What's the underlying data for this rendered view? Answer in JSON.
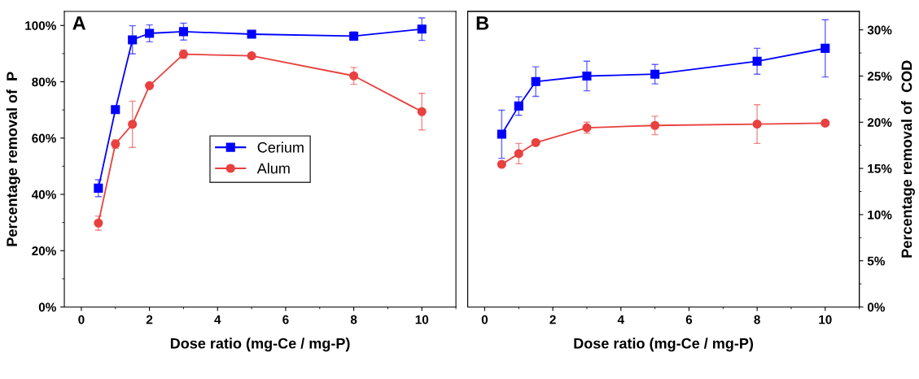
{
  "chart_data": [
    {
      "type": "line",
      "title": "A",
      "xlabel": "Dose ratio (mg-Ce / mg-P)",
      "ylabel": "Percentage removal of  P",
      "x": [
        0.5,
        1,
        1.5,
        2,
        3,
        5,
        8,
        10
      ],
      "xlim": [
        -0.5,
        11
      ],
      "xticks": [
        0,
        2,
        4,
        6,
        8,
        10
      ],
      "ylim": [
        0,
        105
      ],
      "yticks": [
        {
          "value": 0,
          "label": "0%"
        },
        {
          "value": 20,
          "label": "20%"
        },
        {
          "value": 40,
          "label": "40%"
        },
        {
          "value": 60,
          "label": "60%"
        },
        {
          "value": 80,
          "label": "80%"
        },
        {
          "value": 100,
          "label": "100%"
        }
      ],
      "series": [
        {
          "name": "Cerium",
          "color": "#0000ff",
          "marker": "square",
          "values": [
            42.2,
            70.1,
            94.9,
            97.2,
            97.8,
            96.9,
            96.2,
            98.7
          ],
          "errors": [
            3,
            0.5,
            5,
            3,
            3,
            1,
            1.5,
            4
          ]
        },
        {
          "name": "Alum",
          "color": "#e8413f",
          "marker": "circle",
          "values": [
            29.8,
            57.9,
            64.9,
            78.6,
            89.8,
            89.2,
            82.1,
            69.4
          ],
          "errors": [
            2.5,
            1.5,
            8.2,
            0.5,
            1.5,
            0.5,
            3,
            6.5
          ]
        }
      ],
      "legend": "center",
      "grid": false
    },
    {
      "type": "line",
      "title": "B",
      "xlabel": "Dose ratio (mg-Ce / mg-P)",
      "y2label": "Percentage removal of  COD",
      "x": [
        0.5,
        1,
        1.5,
        3,
        5,
        8,
        10
      ],
      "xlim": [
        -0.5,
        11
      ],
      "xticks": [
        0,
        2,
        4,
        6,
        8,
        10
      ],
      "y2lim": [
        0,
        32
      ],
      "y2ticks": [
        {
          "value": 0,
          "label": "0%"
        },
        {
          "value": 5,
          "label": "5%"
        },
        {
          "value": 10,
          "label": "10%"
        },
        {
          "value": 15,
          "label": "15%"
        },
        {
          "value": 20,
          "label": "20%"
        },
        {
          "value": 25,
          "label": "25%"
        },
        {
          "value": 30,
          "label": "30%"
        }
      ],
      "series": [
        {
          "color": "#0000ff",
          "marker": "square",
          "axis": "y2",
          "values": [
            18.7,
            21.75,
            24.4,
            25.0,
            25.2,
            26.6,
            28.0
          ],
          "errors": [
            2.6,
            1.0,
            1.6,
            1.6,
            1.05,
            1.4,
            3.1
          ]
        },
        {
          "color": "#e8413f",
          "marker": "circle",
          "axis": "y2",
          "values": [
            15.45,
            16.6,
            17.8,
            19.4,
            19.65,
            19.8,
            19.9
          ],
          "errors": [
            0.2,
            1.1,
            0.2,
            0.6,
            1.0,
            2.1,
            null
          ]
        }
      ],
      "legend": false,
      "grid": false
    }
  ]
}
